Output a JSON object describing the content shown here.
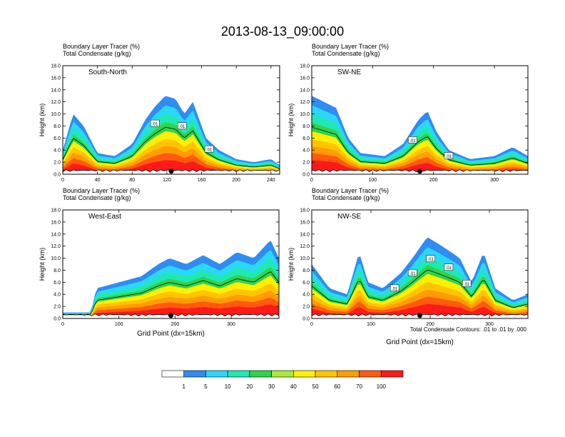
{
  "title": "2013-08-13_09:00:00",
  "colorbar": {
    "labels": [
      "1",
      "5",
      "10",
      "20",
      "30",
      "40",
      "50",
      "60",
      "70",
      "100"
    ],
    "colors": [
      "#ffffff",
      "#2e8cf2",
      "#2ad7f8",
      "#1fe8b4",
      "#2fd34a",
      "#a8e83a",
      "#fff000",
      "#ffc400",
      "#ff9d00",
      "#ff5a10",
      "#ff1a1a"
    ]
  },
  "contour_note": "Total Condensate Contours: .01 to .01 by .000",
  "chart_data": [
    {
      "type": "heatmap",
      "panel": "South-North",
      "header": [
        "Boundary Layer Tracer    (%)",
        "Total Condensate    (g/kg)"
      ],
      "xlabel": "",
      "ylabel": "Height (km)",
      "xlim": [
        0,
        250
      ],
      "ylim": [
        0,
        18
      ],
      "xticks": [
        "0",
        "40",
        "80",
        "120",
        "160",
        "200",
        "240"
      ],
      "yticks": [
        "0.0",
        "2.0",
        "4.0",
        "6.0",
        "8.0",
        "10.0",
        "12.0",
        "14.0",
        "16.0",
        "18.0"
      ],
      "contour_labels": [
        ".01",
        ".01",
        ".01"
      ],
      "profile": [
        [
          0,
          4
        ],
        [
          12,
          10
        ],
        [
          24,
          8
        ],
        [
          40,
          3.5
        ],
        [
          60,
          3
        ],
        [
          80,
          5
        ],
        [
          95,
          9
        ],
        [
          105,
          11
        ],
        [
          118,
          13
        ],
        [
          130,
          12.5
        ],
        [
          140,
          10
        ],
        [
          150,
          12
        ],
        [
          165,
          6
        ],
        [
          180,
          4
        ],
        [
          200,
          2.5
        ],
        [
          220,
          2
        ],
        [
          240,
          2.5
        ],
        [
          250,
          1.5
        ]
      ]
    },
    {
      "type": "heatmap",
      "panel": "SW-NE",
      "header": [
        "Boundary Layer Tracer    (%)",
        "Total Condensate    (g/kg)"
      ],
      "xlabel": "",
      "ylabel": "Height (km)",
      "xlim": [
        0,
        355
      ],
      "ylim": [
        0,
        18
      ],
      "xticks": [
        "0",
        "100",
        "200",
        "300"
      ],
      "yticks": [
        "0.0",
        "2.0",
        "4.0",
        "6.0",
        "8.0",
        "10.0",
        "12.0",
        "14.0",
        "16.0",
        "18.0"
      ],
      "contour_labels": [
        ".01",
        ".01"
      ],
      "profile": [
        [
          0,
          13
        ],
        [
          20,
          12
        ],
        [
          40,
          11
        ],
        [
          60,
          6
        ],
        [
          80,
          3.5
        ],
        [
          120,
          3
        ],
        [
          150,
          5
        ],
        [
          175,
          9
        ],
        [
          190,
          10.5
        ],
        [
          205,
          7
        ],
        [
          225,
          4
        ],
        [
          260,
          2.5
        ],
        [
          300,
          3
        ],
        [
          330,
          4.5
        ],
        [
          355,
          3
        ]
      ]
    },
    {
      "type": "heatmap",
      "panel": "West-East",
      "header": [
        "Boundary Layer Tracer    (%)",
        "Total Condensate    (g/kg)"
      ],
      "xlabel": "Grid Point (dx=15km)",
      "ylabel": "Height (km)",
      "xlim": [
        0,
        385
      ],
      "ylim": [
        0,
        18
      ],
      "xticks": [
        "0",
        "100",
        "200",
        "300"
      ],
      "yticks": [
        "0.0",
        "2.0",
        "4.0",
        "6.0",
        "8.0",
        "10.0",
        "12.0",
        "14.0",
        "16.0",
        "18.0"
      ],
      "contour_labels": [],
      "profile": [
        [
          0,
          1
        ],
        [
          50,
          1
        ],
        [
          60,
          5
        ],
        [
          100,
          6
        ],
        [
          140,
          7
        ],
        [
          170,
          9
        ],
        [
          190,
          10
        ],
        [
          220,
          9
        ],
        [
          250,
          10.5
        ],
        [
          280,
          9
        ],
        [
          310,
          11
        ],
        [
          340,
          10
        ],
        [
          370,
          13
        ],
        [
          385,
          10
        ]
      ]
    },
    {
      "type": "heatmap",
      "panel": "NW-SE",
      "header": [
        "Boundary Layer Tracer    (%)",
        "Total Condensate    (g/kg)"
      ],
      "xlabel": "Grid Point (dx=15km)",
      "ylabel": "Height (km)",
      "xlim": [
        0,
        365
      ],
      "ylim": [
        0,
        18
      ],
      "xticks": [
        "0",
        "100",
        "200",
        "300"
      ],
      "yticks": [
        "0.0",
        "2.0",
        "4.0",
        "6.0",
        "8.0",
        "10.0",
        "12.0",
        "14.0",
        "16.0",
        "18.0"
      ],
      "contour_labels": [
        ".01",
        ".01",
        ".01",
        ".01",
        ".01"
      ],
      "profile": [
        [
          0,
          9
        ],
        [
          30,
          5
        ],
        [
          60,
          4
        ],
        [
          80,
          11
        ],
        [
          95,
          6
        ],
        [
          120,
          5
        ],
        [
          150,
          7.5
        ],
        [
          170,
          10
        ],
        [
          195,
          13.5
        ],
        [
          220,
          12
        ],
        [
          250,
          10
        ],
        [
          270,
          6
        ],
        [
          290,
          11
        ],
        [
          310,
          5
        ],
        [
          340,
          3
        ],
        [
          365,
          4
        ]
      ]
    }
  ]
}
